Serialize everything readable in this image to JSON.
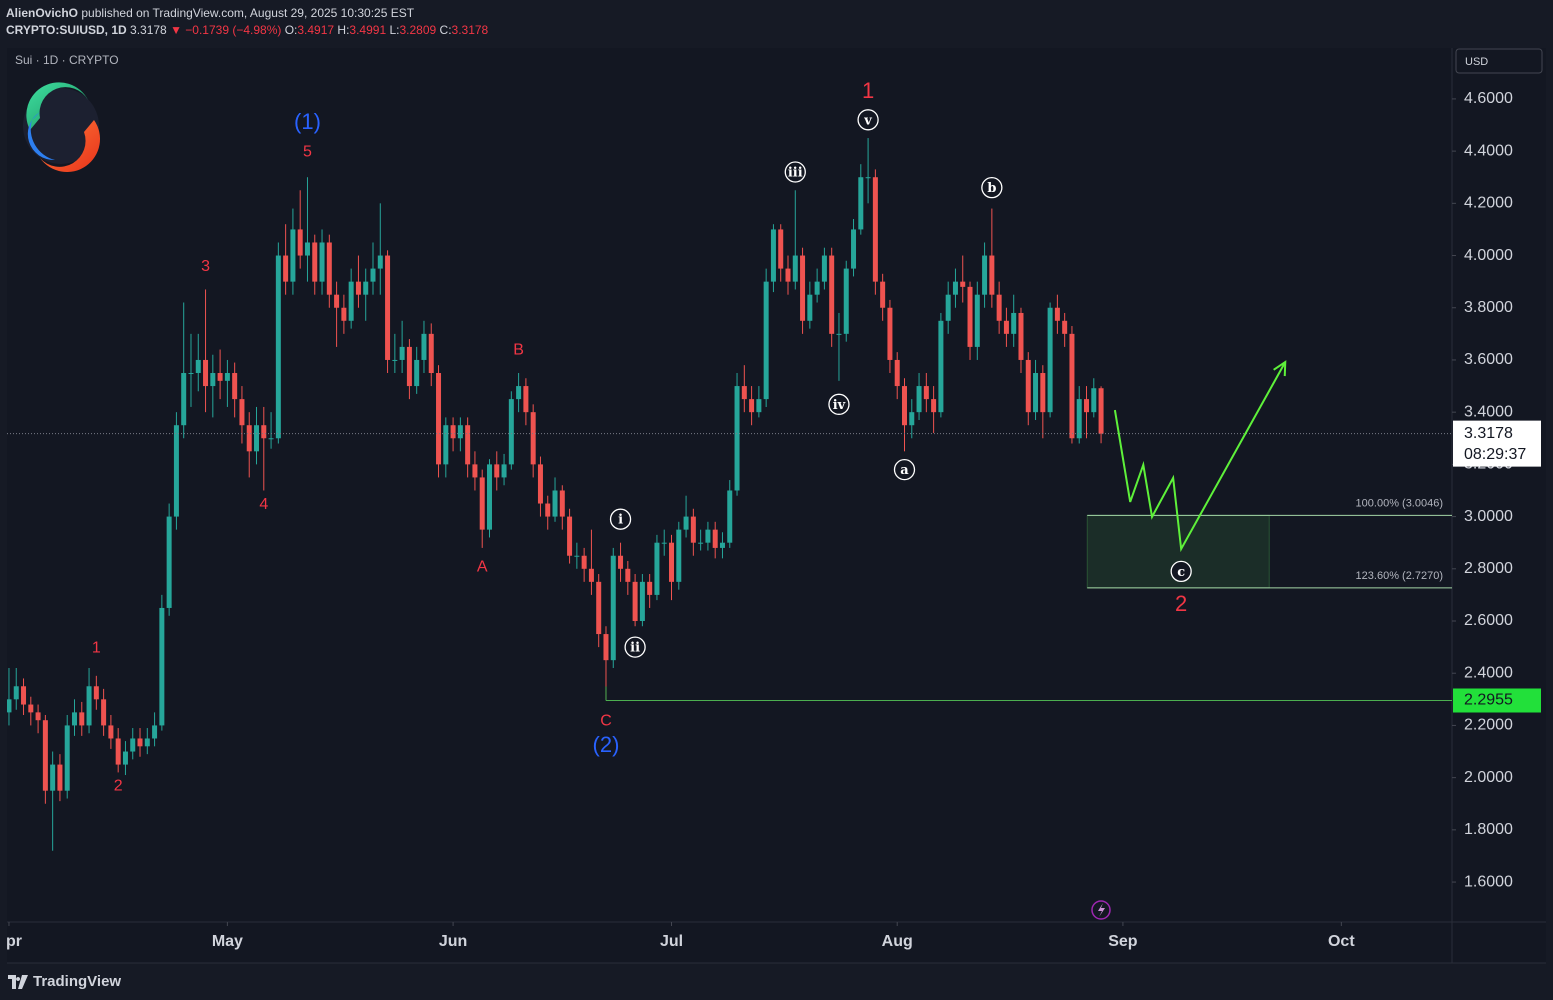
{
  "header": {
    "author": "AlienOvichO",
    "published": "published on TradingView.com, August 29, 2025 10:30:25 EST",
    "symbol": "CRYPTO:SUIUSD, 1D",
    "last": "3.3178",
    "change": "▼ −0.1739 (−4.98%)",
    "ohlc": [
      {
        "label": "O:",
        "value": "3.4917"
      },
      {
        "label": "H:",
        "value": "3.4991"
      },
      {
        "label": "L:",
        "value": "3.2809"
      },
      {
        "label": "C:",
        "value": "3.3178"
      }
    ]
  },
  "legend": "Sui · 1D · CRYPTO",
  "currency": "USD",
  "countdown": "08:29:37",
  "brand": "TradingView",
  "chart_data": {
    "type": "candlestick",
    "up_color": "#26a69a",
    "down_color": "#ef5350",
    "xlim": [
      -0.27,
      198.2
    ],
    "ylim": [
      1.447,
      4.795
    ],
    "xticks": [
      {
        "value": 0,
        "label": "pr"
      },
      {
        "value": 30,
        "label": "May"
      },
      {
        "value": 61,
        "label": "Jun"
      },
      {
        "value": 91,
        "label": "Jul"
      },
      {
        "value": 122,
        "label": "Aug"
      },
      {
        "value": 153,
        "label": "Sep"
      },
      {
        "value": 183,
        "label": "Oct"
      }
    ],
    "yticks": [
      {
        "value": 1.6,
        "label": "1.6000"
      },
      {
        "value": 1.8,
        "label": "1.8000"
      },
      {
        "value": 2.0,
        "label": "2.0000"
      },
      {
        "value": 2.2,
        "label": "2.2000"
      },
      {
        "value": 2.4,
        "label": "2.4000"
      },
      {
        "value": 2.6,
        "label": "2.6000"
      },
      {
        "value": 2.8,
        "label": "2.8000"
      },
      {
        "value": 3.0,
        "label": "3.0000"
      },
      {
        "value": 3.2,
        "label": "3.2000"
      },
      {
        "value": 3.4,
        "label": "3.4000"
      },
      {
        "value": 3.6,
        "label": "3.6000"
      },
      {
        "value": 3.8,
        "label": "3.8000"
      },
      {
        "value": 4.0,
        "label": "4.0000"
      },
      {
        "value": 4.2,
        "label": "4.2000"
      },
      {
        "value": 4.4,
        "label": "4.4000"
      },
      {
        "value": 4.6,
        "label": "4.6000"
      }
    ],
    "candles": [
      [
        2.25,
        2.42,
        2.2,
        2.3
      ],
      [
        2.3,
        2.42,
        2.26,
        2.35
      ],
      [
        2.35,
        2.38,
        2.24,
        2.28
      ],
      [
        2.28,
        2.31,
        2.2,
        2.25
      ],
      [
        2.25,
        2.28,
        2.17,
        2.22
      ],
      [
        2.22,
        2.24,
        1.9,
        1.95
      ],
      [
        1.95,
        2.1,
        1.72,
        2.05
      ],
      [
        2.05,
        2.09,
        1.91,
        1.95
      ],
      [
        1.95,
        2.24,
        1.92,
        2.2
      ],
      [
        2.2,
        2.3,
        2.16,
        2.25
      ],
      [
        2.25,
        2.29,
        2.16,
        2.2
      ],
      [
        2.2,
        2.42,
        2.17,
        2.35
      ],
      [
        2.35,
        2.39,
        2.26,
        2.3
      ],
      [
        2.3,
        2.34,
        2.16,
        2.2
      ],
      [
        2.2,
        2.24,
        2.11,
        2.15
      ],
      [
        2.15,
        2.19,
        2.02,
        2.05
      ],
      [
        2.05,
        2.14,
        2.01,
        2.1
      ],
      [
        2.1,
        2.19,
        2.07,
        2.15
      ],
      [
        2.15,
        2.19,
        2.08,
        2.12
      ],
      [
        2.12,
        2.19,
        2.09,
        2.15
      ],
      [
        2.15,
        2.25,
        2.12,
        2.2
      ],
      [
        2.2,
        2.7,
        2.18,
        2.65
      ],
      [
        2.65,
        3.05,
        2.62,
        3.0
      ],
      [
        3.0,
        3.4,
        2.95,
        3.35
      ],
      [
        3.35,
        3.82,
        3.3,
        3.55
      ],
      [
        3.55,
        3.7,
        3.42,
        3.55
      ],
      [
        3.55,
        3.7,
        3.48,
        3.6
      ],
      [
        3.6,
        3.87,
        3.4,
        3.5
      ],
      [
        3.5,
        3.62,
        3.38,
        3.55
      ],
      [
        3.55,
        3.64,
        3.45,
        3.52
      ],
      [
        3.52,
        3.6,
        3.42,
        3.55
      ],
      [
        3.55,
        3.59,
        3.38,
        3.45
      ],
      [
        3.45,
        3.5,
        3.28,
        3.35
      ],
      [
        3.35,
        3.4,
        3.15,
        3.25
      ],
      [
        3.25,
        3.42,
        3.2,
        3.35
      ],
      [
        3.35,
        3.42,
        3.1,
        3.3
      ],
      [
        3.3,
        3.4,
        3.26,
        3.3
      ],
      [
        3.3,
        4.05,
        3.28,
        4.0
      ],
      [
        4.0,
        4.12,
        3.85,
        3.9
      ],
      [
        3.9,
        4.18,
        3.85,
        4.1
      ],
      [
        4.1,
        4.25,
        3.95,
        4.0
      ],
      [
        4.0,
        4.3,
        3.9,
        4.05
      ],
      [
        4.05,
        4.08,
        3.85,
        3.9
      ],
      [
        3.9,
        4.1,
        3.85,
        4.05
      ],
      [
        4.05,
        4.08,
        3.8,
        3.85
      ],
      [
        3.85,
        3.9,
        3.65,
        3.8
      ],
      [
        3.8,
        3.85,
        3.7,
        3.75
      ],
      [
        3.75,
        3.95,
        3.72,
        3.9
      ],
      [
        3.9,
        4.0,
        3.8,
        3.85
      ],
      [
        3.85,
        3.95,
        3.75,
        3.9
      ],
      [
        3.9,
        4.05,
        3.85,
        3.95
      ],
      [
        3.95,
        4.2,
        3.85,
        4.0
      ],
      [
        4.0,
        4.02,
        3.55,
        3.6
      ],
      [
        3.6,
        3.7,
        3.55,
        3.6
      ],
      [
        3.6,
        3.75,
        3.55,
        3.65
      ],
      [
        3.65,
        3.68,
        3.45,
        3.5
      ],
      [
        3.5,
        3.65,
        3.47,
        3.6
      ],
      [
        3.6,
        3.75,
        3.55,
        3.7
      ],
      [
        3.7,
        3.74,
        3.5,
        3.55
      ],
      [
        3.55,
        3.58,
        3.15,
        3.2
      ],
      [
        3.2,
        3.38,
        3.15,
        3.35
      ],
      [
        3.35,
        3.38,
        3.25,
        3.3
      ],
      [
        3.3,
        3.38,
        3.25,
        3.35
      ],
      [
        3.35,
        3.38,
        3.15,
        3.2
      ],
      [
        3.2,
        3.25,
        3.1,
        3.15
      ],
      [
        3.15,
        3.18,
        2.88,
        2.95
      ],
      [
        2.95,
        3.22,
        2.92,
        3.2
      ],
      [
        3.2,
        3.25,
        3.1,
        3.15
      ],
      [
        3.15,
        3.24,
        3.12,
        3.2
      ],
      [
        3.2,
        3.48,
        3.18,
        3.45
      ],
      [
        3.45,
        3.55,
        3.4,
        3.5
      ],
      [
        3.5,
        3.53,
        3.35,
        3.4
      ],
      [
        3.4,
        3.43,
        3.15,
        3.2
      ],
      [
        3.2,
        3.23,
        3.0,
        3.05
      ],
      [
        3.05,
        3.08,
        2.95,
        3.0
      ],
      [
        3.0,
        3.15,
        2.98,
        3.1
      ],
      [
        3.1,
        3.12,
        2.95,
        3.0
      ],
      [
        3.0,
        3.03,
        2.82,
        2.85
      ],
      [
        2.85,
        2.9,
        2.8,
        2.85
      ],
      [
        2.85,
        2.88,
        2.75,
        2.8
      ],
      [
        2.8,
        2.95,
        2.7,
        2.75
      ],
      [
        2.75,
        2.78,
        2.5,
        2.55
      ],
      [
        2.55,
        2.58,
        2.3,
        2.45
      ],
      [
        2.45,
        2.88,
        2.42,
        2.85
      ],
      [
        2.85,
        2.9,
        2.75,
        2.8
      ],
      [
        2.8,
        2.83,
        2.7,
        2.75
      ],
      [
        2.75,
        2.78,
        2.58,
        2.6
      ],
      [
        2.6,
        2.78,
        2.58,
        2.75
      ],
      [
        2.75,
        2.78,
        2.65,
        2.7
      ],
      [
        2.7,
        2.93,
        2.68,
        2.9
      ],
      [
        2.9,
        2.95,
        2.85,
        2.9
      ],
      [
        2.9,
        2.93,
        2.68,
        2.75
      ],
      [
        2.75,
        2.98,
        2.72,
        2.95
      ],
      [
        2.95,
        3.08,
        2.92,
        3.0
      ],
      [
        3.0,
        3.03,
        2.85,
        2.9
      ],
      [
        2.9,
        2.95,
        2.87,
        2.9
      ],
      [
        2.9,
        2.98,
        2.87,
        2.95
      ],
      [
        2.95,
        2.98,
        2.84,
        2.88
      ],
      [
        2.88,
        2.94,
        2.84,
        2.9
      ],
      [
        2.9,
        3.14,
        2.88,
        3.1
      ],
      [
        3.1,
        3.55,
        3.08,
        3.5
      ],
      [
        3.5,
        3.58,
        3.4,
        3.45
      ],
      [
        3.45,
        3.5,
        3.35,
        3.4
      ],
      [
        3.4,
        3.5,
        3.38,
        3.45
      ],
      [
        3.45,
        3.95,
        3.42,
        3.9
      ],
      [
        3.9,
        4.12,
        3.86,
        4.1
      ],
      [
        4.1,
        4.12,
        3.9,
        3.95
      ],
      [
        3.95,
        4.0,
        3.85,
        3.9
      ],
      [
        3.9,
        4.25,
        3.87,
        4.0
      ],
      [
        4.0,
        4.03,
        3.7,
        3.75
      ],
      [
        3.75,
        3.9,
        3.72,
        3.85
      ],
      [
        3.85,
        3.95,
        3.82,
        3.9
      ],
      [
        3.9,
        4.03,
        3.87,
        4.0
      ],
      [
        4.0,
        4.03,
        3.65,
        3.7
      ],
      [
        3.7,
        3.78,
        3.52,
        3.7
      ],
      [
        3.7,
        3.98,
        3.67,
        3.95
      ],
      [
        3.95,
        4.14,
        3.92,
        4.1
      ],
      [
        4.1,
        4.35,
        4.08,
        4.3
      ],
      [
        4.3,
        4.45,
        4.2,
        4.3
      ],
      [
        4.3,
        4.33,
        3.85,
        3.9
      ],
      [
        3.9,
        3.93,
        3.75,
        3.8
      ],
      [
        3.8,
        3.83,
        3.55,
        3.6
      ],
      [
        3.6,
        3.63,
        3.45,
        3.5
      ],
      [
        3.5,
        3.53,
        3.25,
        3.35
      ],
      [
        3.35,
        3.45,
        3.3,
        3.4
      ],
      [
        3.4,
        3.55,
        3.37,
        3.5
      ],
      [
        3.5,
        3.55,
        3.4,
        3.45
      ],
      [
        3.45,
        3.5,
        3.32,
        3.4
      ],
      [
        3.4,
        3.78,
        3.38,
        3.75
      ],
      [
        3.75,
        3.9,
        3.7,
        3.85
      ],
      [
        3.85,
        3.95,
        3.8,
        3.9
      ],
      [
        3.9,
        4.0,
        3.82,
        3.88
      ],
      [
        3.88,
        3.9,
        3.6,
        3.65
      ],
      [
        3.65,
        3.9,
        3.6,
        3.85
      ],
      [
        3.85,
        4.05,
        3.8,
        4.0
      ],
      [
        4.0,
        4.18,
        3.8,
        3.85
      ],
      [
        3.85,
        3.9,
        3.7,
        3.75
      ],
      [
        3.75,
        3.8,
        3.65,
        3.7
      ],
      [
        3.7,
        3.85,
        3.65,
        3.78
      ],
      [
        3.78,
        3.8,
        3.55,
        3.6
      ],
      [
        3.6,
        3.63,
        3.35,
        3.4
      ],
      [
        3.4,
        3.6,
        3.37,
        3.55
      ],
      [
        3.55,
        3.58,
        3.3,
        3.4
      ],
      [
        3.4,
        3.82,
        3.38,
        3.8
      ],
      [
        3.8,
        3.85,
        3.7,
        3.75
      ],
      [
        3.75,
        3.78,
        3.65,
        3.7
      ],
      [
        3.7,
        3.73,
        3.28,
        3.3
      ],
      [
        3.3,
        3.5,
        3.28,
        3.45
      ],
      [
        3.45,
        3.5,
        3.3,
        3.4
      ],
      [
        3.4,
        3.53,
        3.38,
        3.4917
      ],
      [
        3.4917,
        3.4991,
        3.2809,
        3.3178
      ]
    ],
    "hline": {
      "value": 2.2955,
      "x": 82,
      "color": "#4caf50",
      "tag_color": "#22e03a"
    },
    "fib": {
      "x": [
        148.1,
        173.1
      ],
      "color": "#a5d6a7",
      "levels": [
        {
          "value": 3.0046,
          "label": "100.00% (3.0046)"
        },
        {
          "value": 2.727,
          "label": "123.60% (2.7270)"
        }
      ]
    },
    "projection": {
      "color": "#5ef13a",
      "x": [
        151.9,
        154,
        155.8,
        157,
        159.9,
        161,
        175.3
      ],
      "y": [
        3.408,
        3.056,
        3.198,
        2.999,
        3.148,
        2.876,
        3.592
      ]
    },
    "annotations": [
      {
        "text": "(1)",
        "x": 41,
        "y": 4.51,
        "color": "#2962ff",
        "size": 22
      },
      {
        "text": "5",
        "x": 41,
        "y": 4.4,
        "color": "#f23645",
        "size": 16
      },
      {
        "text": "3",
        "x": 27,
        "y": 3.96,
        "color": "#f23645",
        "size": 16
      },
      {
        "text": "4",
        "x": 35,
        "y": 3.05,
        "color": "#f23645",
        "size": 16
      },
      {
        "text": "1",
        "x": 12,
        "y": 2.5,
        "color": "#f23645",
        "size": 16
      },
      {
        "text": "2",
        "x": 15,
        "y": 1.97,
        "color": "#f23645",
        "size": 16
      },
      {
        "text": "B",
        "x": 70,
        "y": 3.64,
        "color": "#f23645",
        "size": 16
      },
      {
        "text": "A",
        "x": 65,
        "y": 2.81,
        "color": "#f23645",
        "size": 16
      },
      {
        "text": "C",
        "x": 82,
        "y": 2.22,
        "color": "#f23645",
        "size": 16
      },
      {
        "text": "(2)",
        "x": 82,
        "y": 2.125,
        "color": "#2962ff",
        "size": 22
      },
      {
        "text": "i",
        "x": 84,
        "y": 2.99,
        "color": "#ffffff",
        "size": 13,
        "circled": true
      },
      {
        "text": "ii",
        "x": 86,
        "y": 2.5,
        "color": "#ffffff",
        "size": 13,
        "circled": true
      },
      {
        "text": "iii",
        "x": 108,
        "y": 4.32,
        "color": "#ffffff",
        "size": 13,
        "circled": true
      },
      {
        "text": "iv",
        "x": 114,
        "y": 3.43,
        "color": "#ffffff",
        "size": 13,
        "circled": true
      },
      {
        "text": "v",
        "x": 118,
        "y": 4.52,
        "color": "#ffffff",
        "size": 13,
        "circled": true
      },
      {
        "text": "1",
        "x": 118,
        "y": 4.63,
        "color": "#f23645",
        "size": 22
      },
      {
        "text": "a",
        "x": 123,
        "y": 3.18,
        "color": "#ffffff",
        "size": 13,
        "circled": true
      },
      {
        "text": "b",
        "x": 135,
        "y": 4.26,
        "color": "#ffffff",
        "size": 13,
        "circled": true
      },
      {
        "text": "c",
        "x": 161,
        "y": 2.79,
        "color": "#ffffff",
        "size": 13,
        "circled": true
      },
      {
        "text": "2",
        "x": 161,
        "y": 2.665,
        "color": "#f23645",
        "size": 22
      }
    ]
  }
}
